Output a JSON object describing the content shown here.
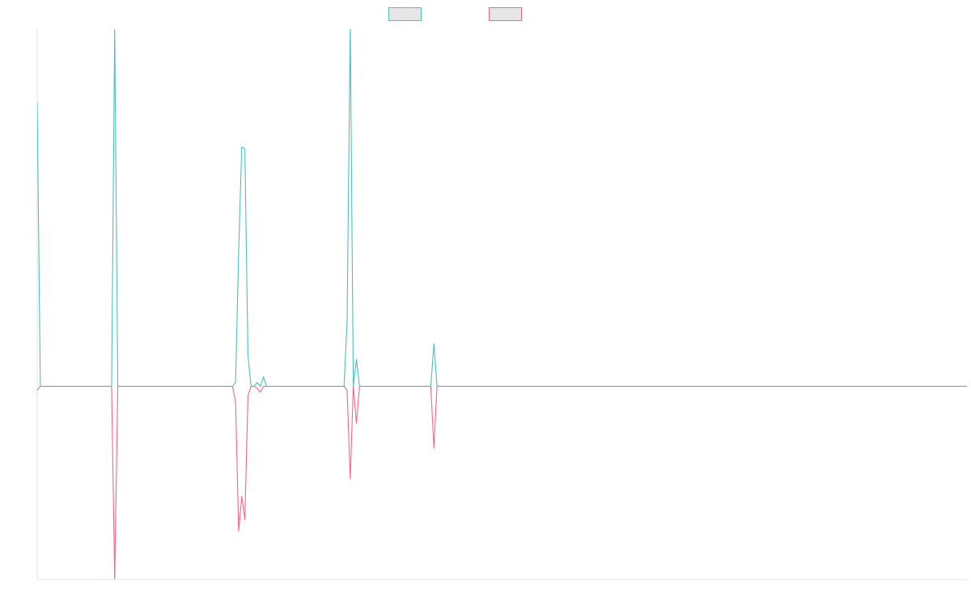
{
  "chart_data": {
    "type": "line",
    "title": "",
    "xlabel": "",
    "ylabel": "",
    "grid": false,
    "legend_position": "top-center",
    "ylim": [
      -100,
      185
    ],
    "x_count": 301,
    "baseline": 0,
    "colors": {
      "series_a": "#4bc0c0",
      "series_b": "#ff6384",
      "legend_fill": "#e6e6e6",
      "axis": "#e5e5e5"
    },
    "series": [
      {
        "key": "a",
        "color": "#4bc0c0",
        "points": [
          [
            0,
            147
          ],
          [
            1,
            0
          ],
          [
            24,
            0
          ],
          [
            25,
            185
          ],
          [
            26,
            0
          ],
          [
            63,
            0
          ],
          [
            64,
            2
          ],
          [
            65,
            70
          ],
          [
            66,
            124
          ],
          [
            67,
            123
          ],
          [
            68,
            16
          ],
          [
            69,
            0
          ],
          [
            70,
            0
          ],
          [
            71,
            2
          ],
          [
            72,
            0
          ],
          [
            73,
            5
          ],
          [
            74,
            0
          ],
          [
            99,
            0
          ],
          [
            100,
            34
          ],
          [
            101,
            188
          ],
          [
            102,
            0
          ],
          [
            103,
            14
          ],
          [
            104,
            0
          ],
          [
            127,
            0
          ],
          [
            128,
            22
          ],
          [
            129,
            0
          ],
          [
            300,
            0
          ]
        ]
      },
      {
        "key": "b",
        "color": "#ff6384",
        "points": [
          [
            0,
            -2
          ],
          [
            1,
            0
          ],
          [
            24,
            0
          ],
          [
            25,
            -100
          ],
          [
            26,
            0
          ],
          [
            63,
            0
          ],
          [
            64,
            -8
          ],
          [
            65,
            -75
          ],
          [
            66,
            -57
          ],
          [
            67,
            -69
          ],
          [
            68,
            -5
          ],
          [
            69,
            0
          ],
          [
            70,
            0
          ],
          [
            71,
            -1
          ],
          [
            72,
            -3
          ],
          [
            73,
            0
          ],
          [
            99,
            0
          ],
          [
            100,
            -2
          ],
          [
            101,
            -48
          ],
          [
            102,
            0
          ],
          [
            103,
            -19
          ],
          [
            104,
            0
          ],
          [
            127,
            0
          ],
          [
            128,
            -32
          ],
          [
            129,
            0
          ],
          [
            300,
            0
          ]
        ]
      }
    ]
  }
}
